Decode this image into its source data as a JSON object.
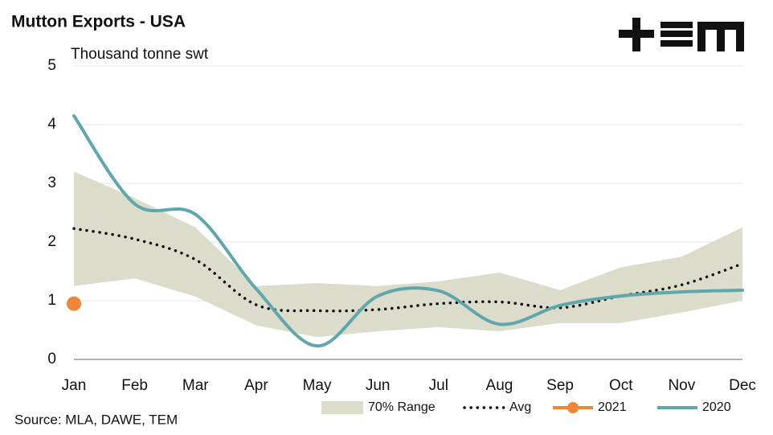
{
  "chart_data": {
    "type": "line",
    "title": "Mutton Exports - USA",
    "subtitle": "Thousand tonne swt",
    "source": "Source: MLA, DAWE, TEM",
    "categories": [
      "Jan",
      "Feb",
      "Mar",
      "Apr",
      "May",
      "Jun",
      "Jul",
      "Aug",
      "Sep",
      "Oct",
      "Nov",
      "Dec"
    ],
    "ylim": [
      0,
      5
    ],
    "yticks": [
      0,
      1,
      2,
      3,
      4,
      5
    ],
    "grid": true,
    "range": {
      "name": "70% Range",
      "color": "#dcdccb",
      "high": [
        3.2,
        2.75,
        2.25,
        1.25,
        1.3,
        1.25,
        1.33,
        1.48,
        1.18,
        1.57,
        1.75,
        2.25
      ],
      "low": [
        1.25,
        1.38,
        1.07,
        0.58,
        0.38,
        0.48,
        0.55,
        0.48,
        0.62,
        0.62,
        0.8,
        1.0
      ]
    },
    "series": [
      {
        "name": "Avg",
        "color": "#111111",
        "style": "dotted",
        "values": [
          2.23,
          2.05,
          1.7,
          0.93,
          0.83,
          0.85,
          0.95,
          0.98,
          0.88,
          1.08,
          1.27,
          1.63
        ]
      },
      {
        "name": "2021",
        "color": "#ef8535",
        "style": "marker",
        "values": [
          0.95,
          null,
          null,
          null,
          null,
          null,
          null,
          null,
          null,
          null,
          null,
          null
        ]
      },
      {
        "name": "2020",
        "color": "#5fa6ad",
        "style": "solid",
        "values": [
          4.15,
          2.65,
          2.47,
          1.2,
          0.23,
          1.08,
          1.17,
          0.6,
          0.92,
          1.08,
          1.15,
          1.18
        ]
      }
    ]
  }
}
